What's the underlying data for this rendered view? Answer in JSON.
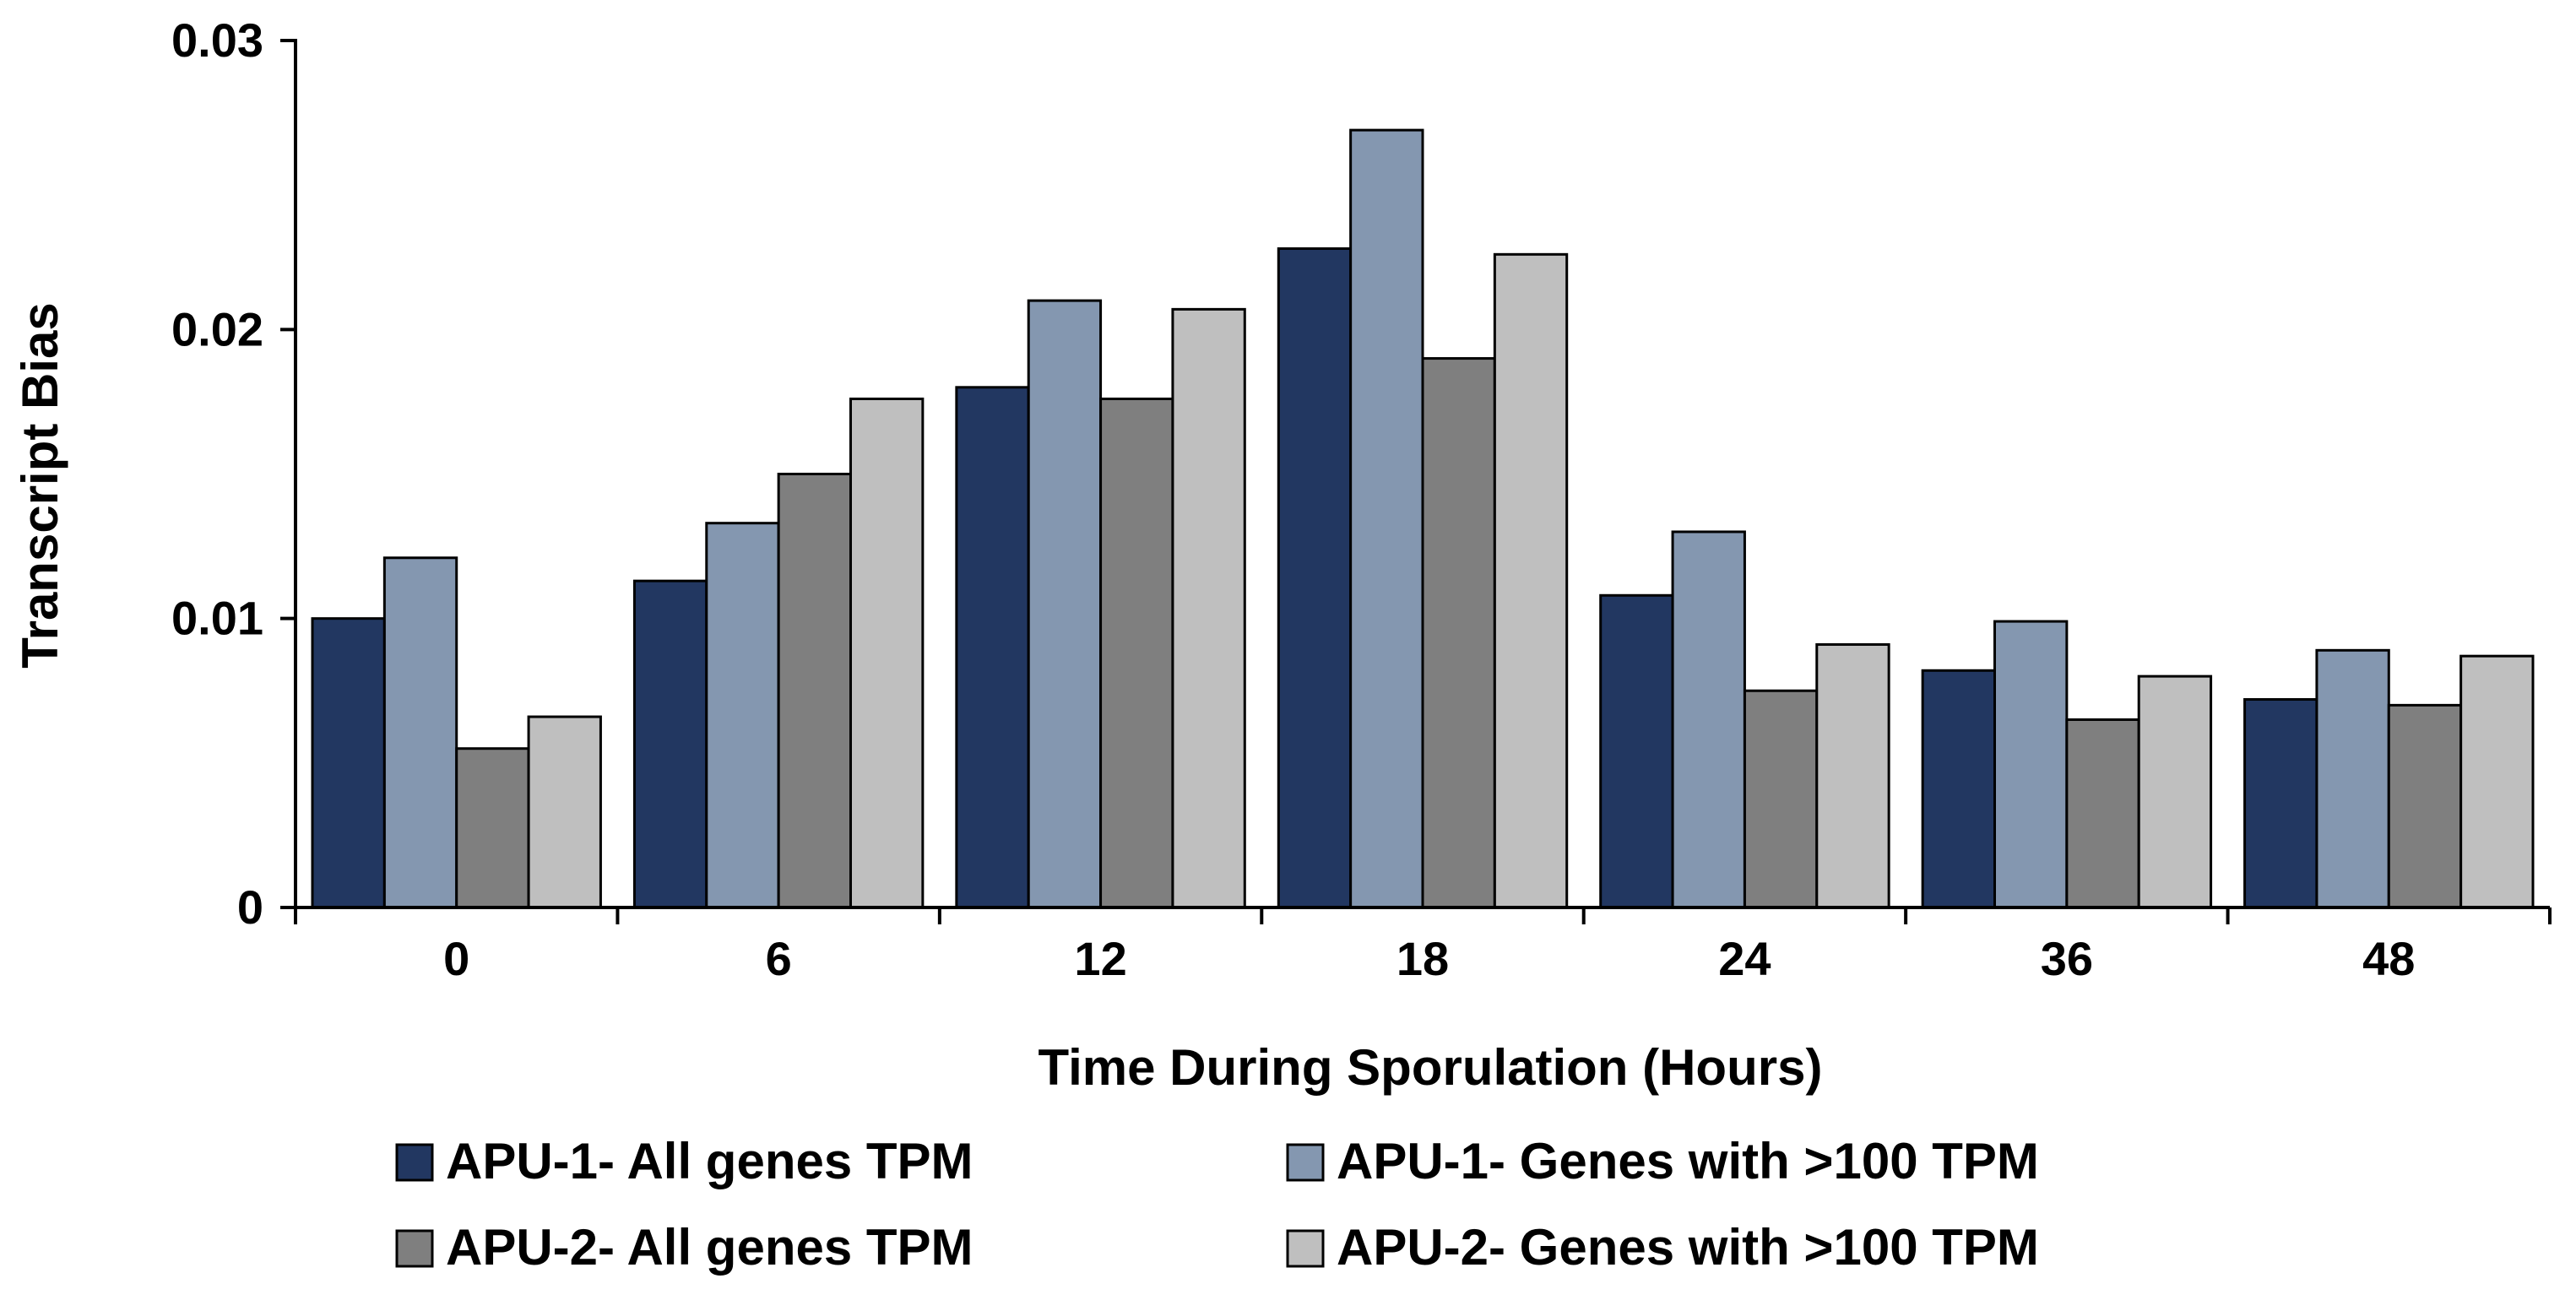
{
  "chart_data": {
    "type": "bar",
    "title": "",
    "xlabel": "Time During Sporulation (Hours)",
    "ylabel": "Transcript Bias",
    "ylim": [
      0,
      0.03
    ],
    "yticks": [
      "0",
      "0.01",
      "0.02",
      "0.03"
    ],
    "grid": false,
    "legend_position": "bottom",
    "categories": [
      "0",
      "6",
      "12",
      "18",
      "24",
      "36",
      "48"
    ],
    "series": [
      {
        "name": "APU-1- All genes TPM",
        "color": "#223761",
        "values": [
          0.01,
          0.0113,
          0.018,
          0.0228,
          0.0108,
          0.0082,
          0.0072
        ]
      },
      {
        "name": "APU-1- Genes with >100 TPM",
        "color": "#8497b0",
        "values": [
          0.0121,
          0.0133,
          0.021,
          0.0269,
          0.013,
          0.0099,
          0.0089
        ]
      },
      {
        "name": "APU-2- All genes TPM",
        "color": "#7f7f7f",
        "values": [
          0.0055,
          0.015,
          0.0176,
          0.019,
          0.0075,
          0.0065,
          0.007
        ]
      },
      {
        "name": "APU-2- Genes with >100 TPM",
        "color": "#bfbfbf",
        "values": [
          0.0066,
          0.0176,
          0.0207,
          0.0226,
          0.0091,
          0.008,
          0.0087
        ]
      }
    ]
  }
}
